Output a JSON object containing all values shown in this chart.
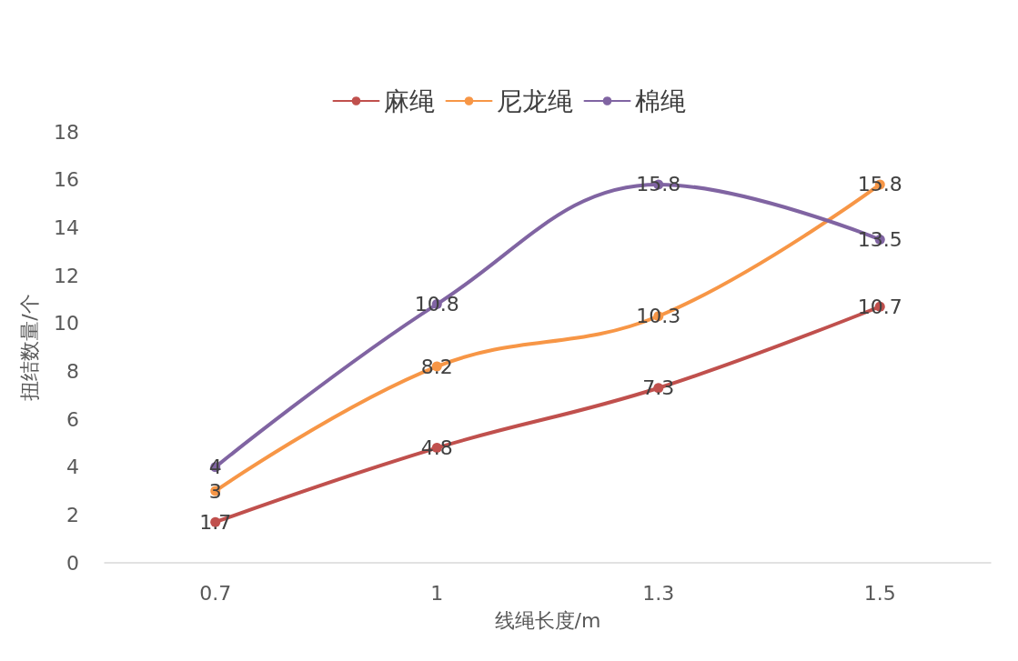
{
  "chart_data": {
    "type": "line",
    "xlabel": "线绳长度/m",
    "ylabel": "扭结数量/个",
    "categories": [
      "0.7",
      "1",
      "1.3",
      "1.5"
    ],
    "series": [
      {
        "name": "麻绳",
        "color": "#c0504d",
        "values": [
          1.7,
          4.8,
          7.3,
          10.7
        ]
      },
      {
        "name": "尼龙绳",
        "color": "#f79646",
        "values": [
          3,
          8.2,
          10.3,
          15.8
        ]
      },
      {
        "name": "棉绳",
        "color": "#8064a2",
        "values": [
          4,
          10.8,
          15.8,
          13.5
        ]
      }
    ],
    "ylim": [
      0,
      18
    ],
    "yticks": [
      0,
      2,
      4,
      6,
      8,
      10,
      12,
      14,
      16,
      18
    ],
    "grid": false,
    "legend": "top",
    "marker": "circle",
    "line_style": "solid",
    "data_labels": true
  }
}
